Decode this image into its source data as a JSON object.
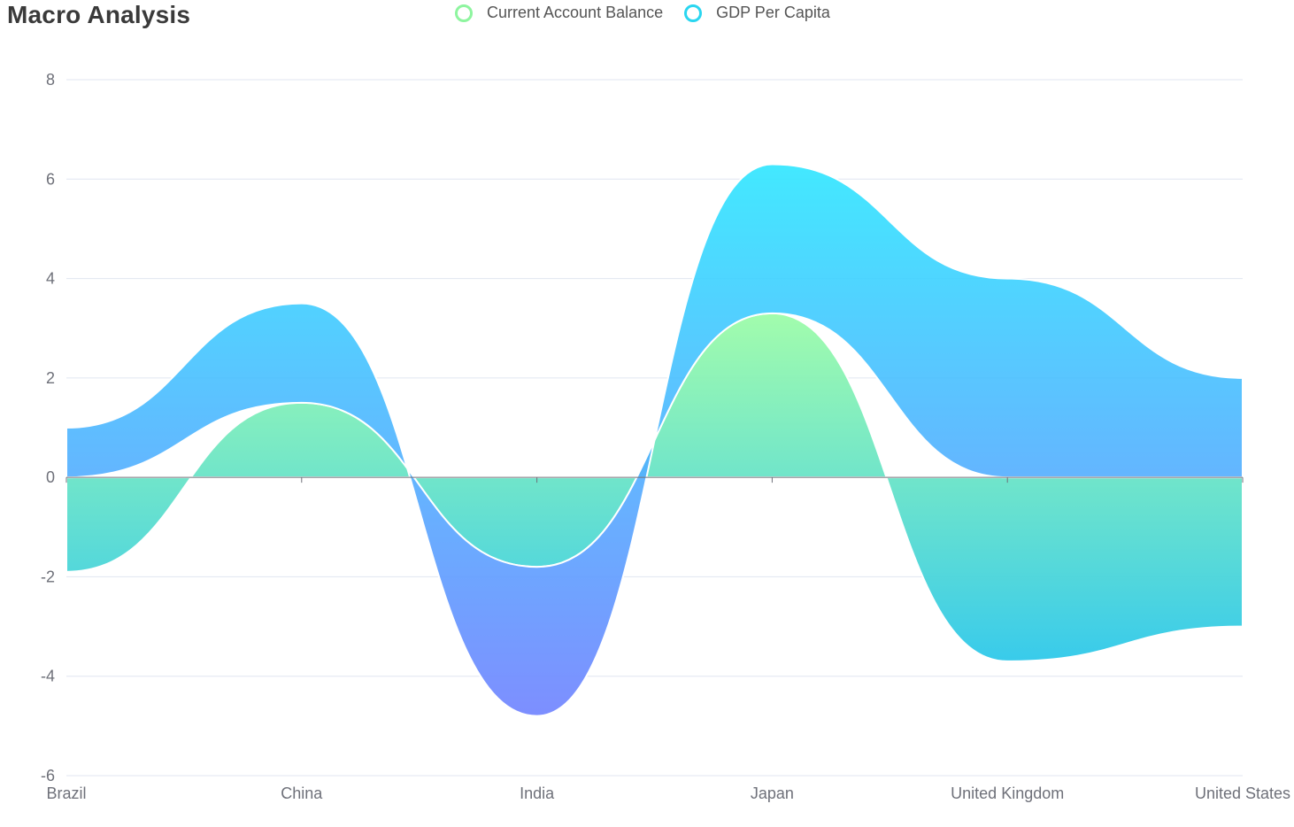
{
  "title": "Macro Analysis",
  "legend": [
    {
      "label": "Current Account Balance",
      "color": "#8ef59f"
    },
    {
      "label": "GDP Per Capita",
      "color": "#2ad6f0"
    }
  ],
  "chart_data": {
    "type": "area",
    "stacked": true,
    "smooth": true,
    "title": "Macro Analysis",
    "categories": [
      "Brazil",
      "China",
      "India",
      "Japan",
      "United Kingdom",
      "United States"
    ],
    "series": [
      {
        "name": "Current Account Balance",
        "values": [
          -1.9,
          1.5,
          -1.8,
          3.3,
          -3.7,
          -3.0
        ],
        "gradient": [
          "#9dfca8",
          "#2ec8ea"
        ]
      },
      {
        "name": "GDP Per Capita",
        "values": [
          1.0,
          2.0,
          -3.0,
          3.0,
          4.0,
          2.0
        ],
        "gradient": [
          "#2ee6ff",
          "#6f82ff"
        ]
      }
    ],
    "yticks": [
      "8",
      "6",
      "4",
      "2",
      "0",
      "-2",
      "-4",
      "-6"
    ],
    "ylim": [
      -6,
      8
    ],
    "grid": true,
    "legend_position": "top-center"
  }
}
